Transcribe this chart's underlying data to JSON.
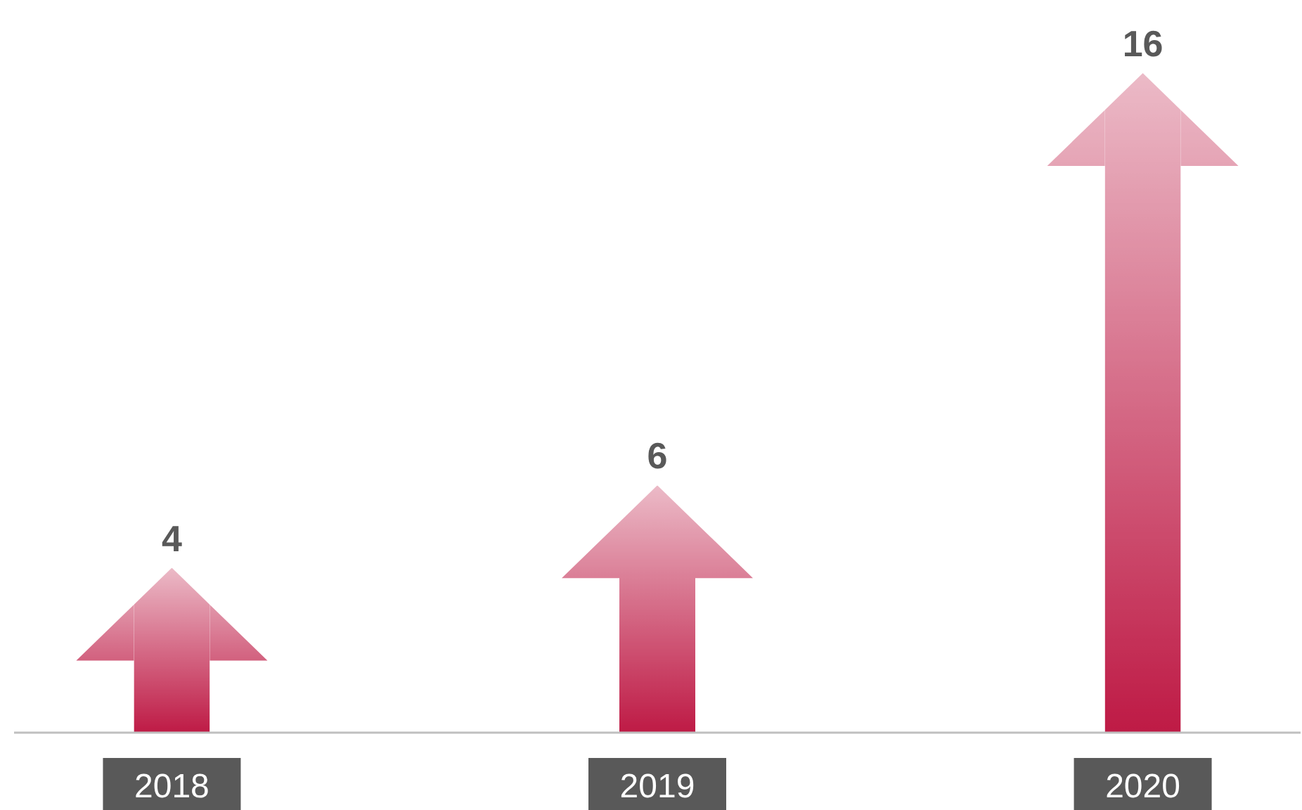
{
  "chart_data": {
    "type": "bar",
    "categories": [
      "2018",
      "2019",
      "2020"
    ],
    "values": [
      4,
      6,
      16
    ],
    "color": "#be1a45",
    "data_labels": true
  }
}
